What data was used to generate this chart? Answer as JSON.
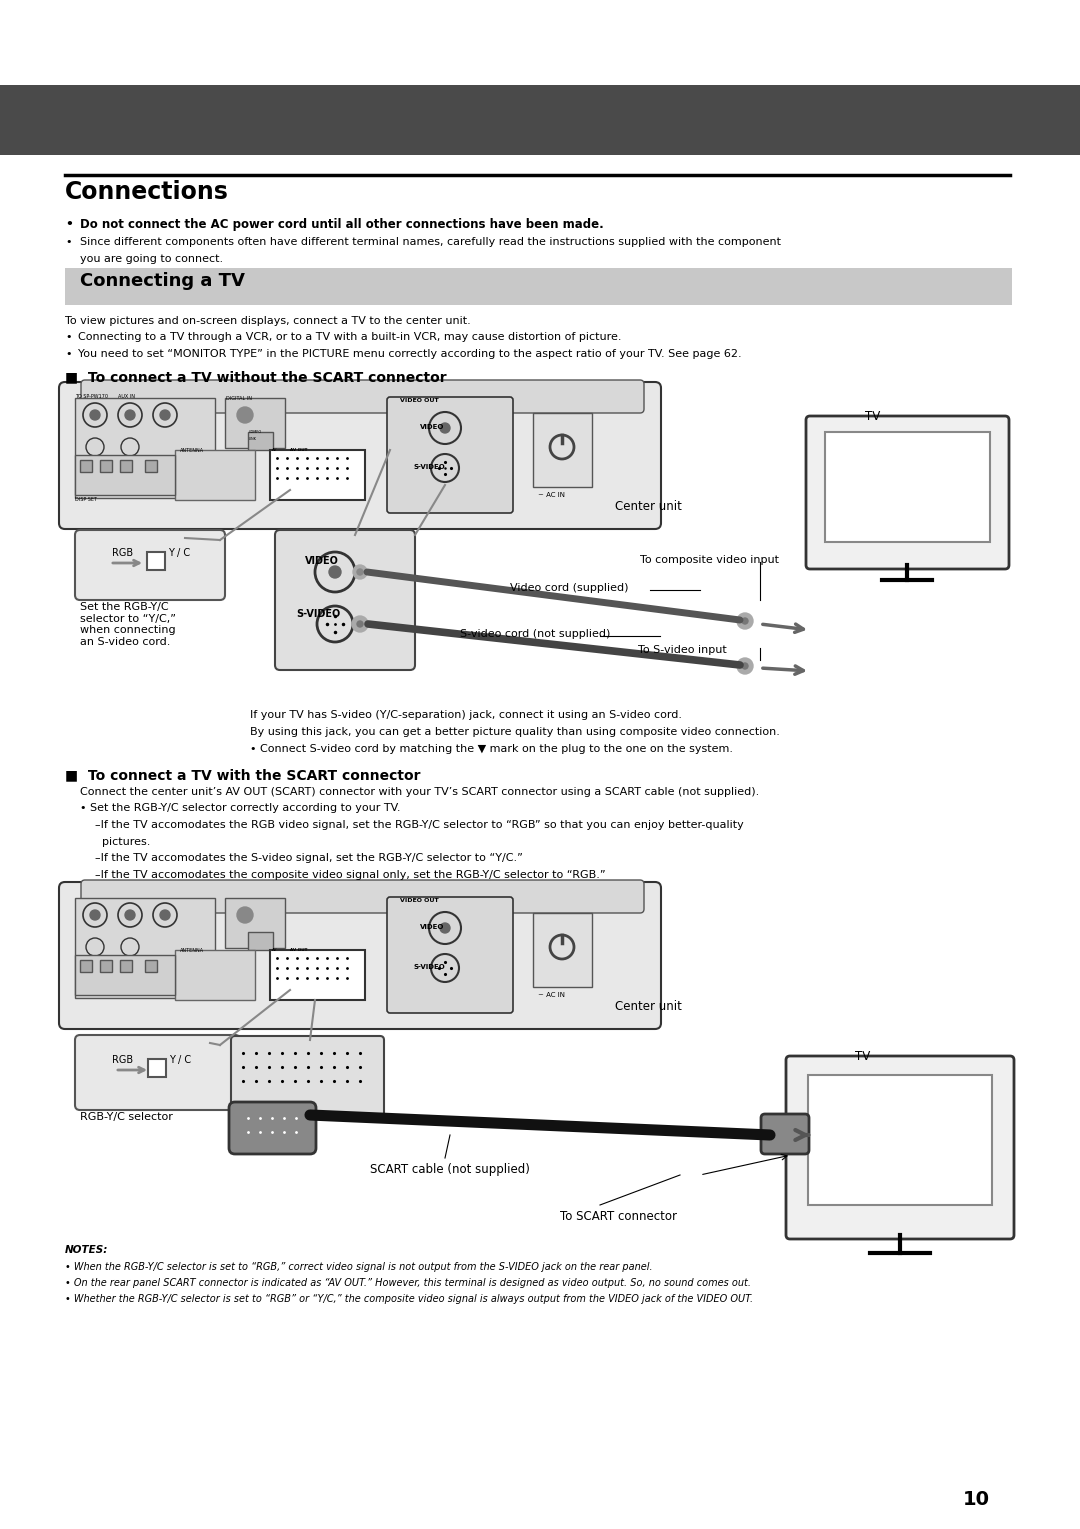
{
  "page_bg": "#ffffff",
  "header_bar_color": "#4a4a4a",
  "connections_title": "Connections",
  "bullet_bold_1": "Do not connect the AC power cord until all other connections have been made.",
  "bullet_normal_1a": "Since different components often have different terminal names, carefully read the instructions supplied with the component",
  "bullet_normal_1b": "you are going to connect.",
  "connecting_tv_title": "Connecting a TV",
  "connecting_tv_desc": "To view pictures and on-screen displays, connect a TV to the center unit.",
  "connecting_tv_bullet1": "Connecting to a TV through a VCR, or to a TV with a built-in VCR, may cause distortion of picture.",
  "connecting_tv_bullet2": "You need to set “MONITOR TYPE” in the PICTURE menu correctly according to the aspect ratio of your TV. See page 62.",
  "section1_title": "■  To connect a TV without the SCART connector",
  "section2_title": "■  To connect a TV with the SCART connector",
  "scart_desc": "Connect the center unit’s AV OUT (SCART) connector with your TV’s SCART connector using a SCART cable (not supplied).",
  "scart_bullet1": "Set the RGB-Y/C selector correctly according to your TV.",
  "scart_sub1": "–If the TV accomodates the RGB video signal, set the RGB-Y/C selector to “RGB” so that you can enjoy better-quality",
  "scart_sub1b": "  pictures.",
  "scart_sub2": "–If the TV accomodates the S-video signal, set the RGB-Y/C selector to “Y/C.”",
  "scart_sub3": "–If the TV accomodates the composite video signal only, set the RGB-Y/C selector to “RGB.”",
  "label_center_unit": "Center unit",
  "label_tv": "TV",
  "label_composite_input": "To composite video input",
  "label_video_cord": "Video cord (supplied)",
  "label_svideo_cord": "S-video cord (not supplied)",
  "label_svideo_input": "To S-video input",
  "label_rgb_selector": "Set the RGB-Y/C\nselector to “Y/C,”\nwhen connecting\nan S-video cord.",
  "label_rgb_selector2": "RGB-Y/C selector",
  "label_scart_cable": "SCART cable (not supplied)",
  "label_scart_connector": "To SCART connector",
  "svideo_note1": "If your TV has S-video (Y/C-separation) jack, connect it using an S-video cord.",
  "svideo_note2": "By using this jack, you can get a better picture quality than using composite video connection.",
  "svideo_note3": "• Connect S-video cord by matching the ▼ mark on the plug to the one on the system.",
  "notes_title": "NOTES:",
  "notes_1": "When the RGB-Y/C selector is set to “RGB,” correct video signal is not output from the S-VIDEO jack on the rear panel.",
  "notes_2": "On the rear panel SCART connector is indicated as “AV OUT.” However, this terminal is designed as video output. So, no sound comes out.",
  "notes_3": "Whether the RGB-Y/C selector is set to “RGB” or “Y/C,” the composite video signal is always output from the VIDEO jack of the VIDEO OUT.",
  "page_number": "10"
}
